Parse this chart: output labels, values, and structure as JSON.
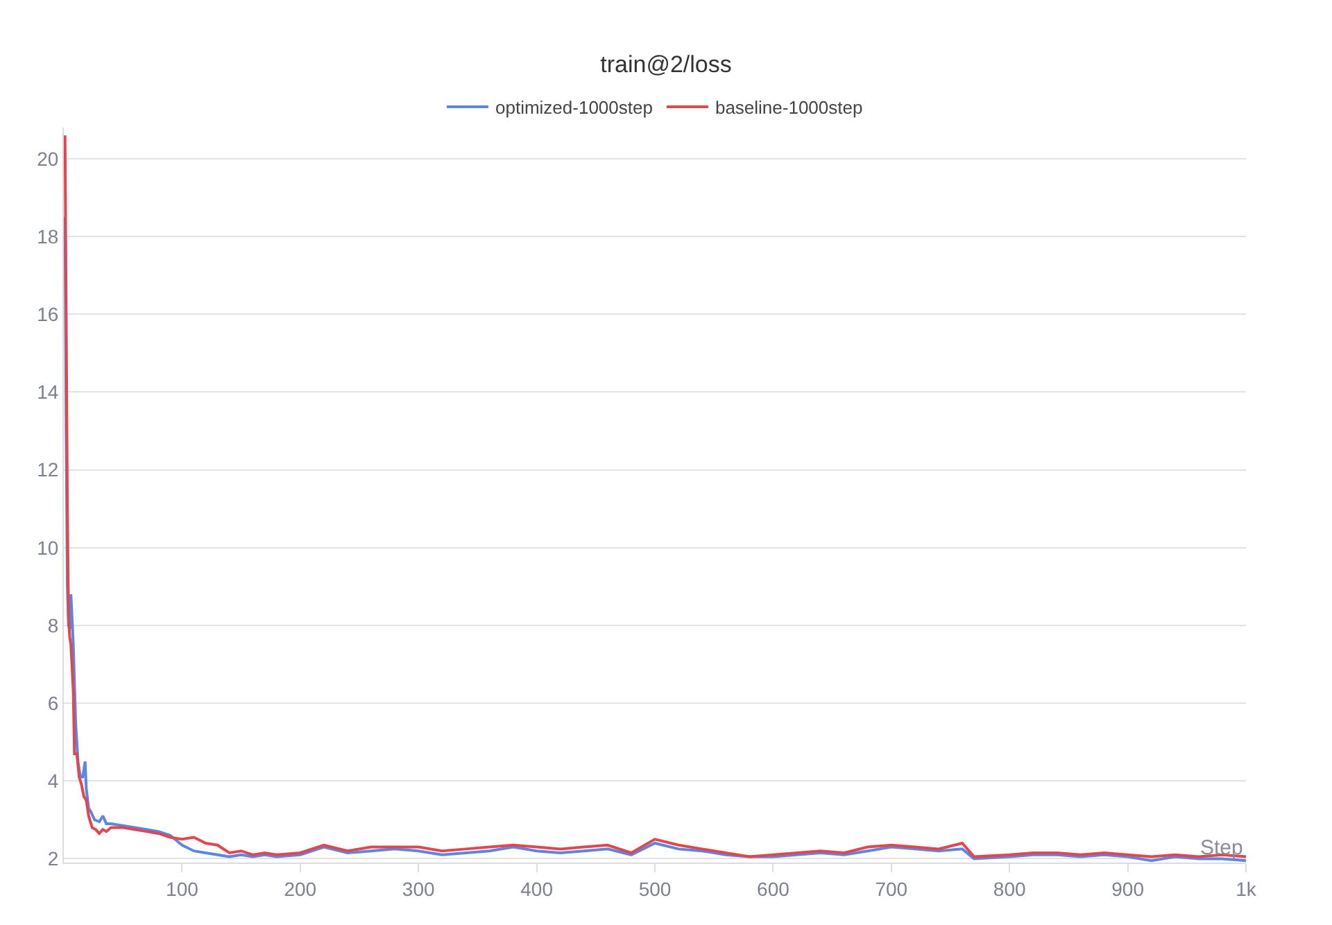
{
  "chart_data": {
    "type": "line",
    "title": "train@2/loss",
    "xlabel": "Step",
    "xlim": [
      0,
      1000
    ],
    "xticks": [
      100,
      200,
      300,
      400,
      500,
      600,
      700,
      800,
      900,
      {
        "value": 1000,
        "label": "1k"
      }
    ],
    "ylim": [
      1.9,
      20.8
    ],
    "yticks": [
      2,
      4,
      6,
      8,
      10,
      12,
      14,
      16,
      18,
      20
    ],
    "grid": "y",
    "legend": "top",
    "marker": "none",
    "line_style": "solid",
    "series": [
      {
        "name": "optimized-1000step",
        "color": "#5b87e0",
        "x": [
          1,
          2,
          3,
          4,
          5,
          6,
          8,
          10,
          12,
          14,
          16,
          18,
          19,
          21,
          23,
          26,
          30,
          33,
          36,
          40,
          50,
          60,
          70,
          80,
          90,
          100,
          110,
          120,
          130,
          140,
          150,
          160,
          170,
          180,
          200,
          220,
          240,
          260,
          280,
          300,
          320,
          340,
          360,
          380,
          400,
          420,
          440,
          460,
          480,
          500,
          520,
          540,
          560,
          580,
          600,
          620,
          640,
          660,
          680,
          700,
          720,
          740,
          760,
          770,
          800,
          820,
          840,
          860,
          880,
          900,
          920,
          940,
          960,
          980,
          1000
        ],
        "values": [
          18.5,
          13,
          9,
          8.0,
          7.9,
          8.8,
          7.5,
          5.5,
          4.5,
          4.1,
          4.1,
          4.5,
          3.8,
          3.3,
          3.2,
          3.0,
          2.95,
          3.1,
          2.9,
          2.9,
          2.85,
          2.8,
          2.75,
          2.7,
          2.6,
          2.35,
          2.2,
          2.15,
          2.1,
          2.05,
          2.1,
          2.05,
          2.1,
          2.05,
          2.1,
          2.3,
          2.15,
          2.2,
          2.25,
          2.2,
          2.1,
          2.15,
          2.2,
          2.3,
          2.2,
          2.15,
          2.2,
          2.25,
          2.1,
          2.4,
          2.25,
          2.2,
          2.1,
          2.05,
          2.05,
          2.1,
          2.15,
          2.1,
          2.2,
          2.3,
          2.25,
          2.2,
          2.25,
          2.0,
          2.05,
          2.1,
          2.1,
          2.05,
          2.1,
          2.05,
          1.95,
          2.05,
          2.0,
          2.0,
          1.95
        ]
      },
      {
        "name": "baseline-1000step",
        "color": "#e0474f",
        "x": [
          1,
          2,
          3,
          4,
          5,
          6,
          8,
          9,
          11,
          13,
          15,
          17,
          19,
          21,
          24,
          27,
          30,
          33,
          36,
          40,
          50,
          60,
          70,
          80,
          90,
          100,
          110,
          120,
          130,
          140,
          150,
          160,
          170,
          180,
          200,
          220,
          240,
          260,
          280,
          300,
          320,
          340,
          360,
          380,
          400,
          420,
          440,
          460,
          480,
          500,
          520,
          540,
          560,
          580,
          600,
          620,
          640,
          660,
          680,
          700,
          720,
          740,
          760,
          770,
          800,
          820,
          840,
          860,
          880,
          900,
          920,
          940,
          960,
          980,
          1000
        ],
        "values": [
          20.6,
          16,
          11,
          8.2,
          7.7,
          7.5,
          6.3,
          4.7,
          4.7,
          4.1,
          3.9,
          3.6,
          3.5,
          3.1,
          2.8,
          2.75,
          2.65,
          2.75,
          2.7,
          2.8,
          2.8,
          2.75,
          2.7,
          2.65,
          2.55,
          2.5,
          2.55,
          2.4,
          2.35,
          2.15,
          2.2,
          2.1,
          2.15,
          2.1,
          2.15,
          2.35,
          2.2,
          2.3,
          2.3,
          2.3,
          2.2,
          2.25,
          2.3,
          2.35,
          2.3,
          2.25,
          2.3,
          2.35,
          2.15,
          2.5,
          2.35,
          2.25,
          2.15,
          2.05,
          2.1,
          2.15,
          2.2,
          2.15,
          2.3,
          2.35,
          2.3,
          2.25,
          2.4,
          2.05,
          2.1,
          2.15,
          2.15,
          2.1,
          2.15,
          2.1,
          2.05,
          2.1,
          2.05,
          2.1,
          2.05
        ]
      }
    ]
  }
}
